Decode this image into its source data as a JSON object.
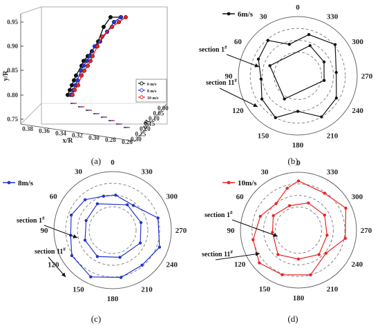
{
  "chart_data": [
    {
      "panel": "(a)",
      "type": "line",
      "projection": "3d",
      "ylabel": "y/R",
      "xlabel": "x/R",
      "zlabel": "z/R",
      "y_ticks": [
        "0.75",
        "0.80",
        "0.85",
        "0.90",
        "0.95"
      ],
      "x_ticks": [
        "0.38",
        "0.36",
        "0.34",
        "0.32",
        "0.30",
        "0.28",
        "0.26"
      ],
      "z_ticks": [
        "0.00",
        "0.05",
        "0.10",
        "0.15",
        "0.20",
        "0.25",
        "0.30"
      ],
      "legend": [
        "6 m/s",
        "8 m/s",
        "10 m/s"
      ],
      "colors": [
        "#111111",
        "#2233dd",
        "#ee2222"
      ],
      "series": [
        {
          "name": "6 m/s",
          "y": [
            0.8,
            0.81,
            0.82,
            0.83,
            0.84,
            0.86,
            0.87,
            0.88,
            0.89,
            0.91,
            0.94,
            0.96,
            0.96
          ]
        },
        {
          "name": "8 m/s",
          "y": [
            0.8,
            0.81,
            0.82,
            0.83,
            0.85,
            0.86,
            0.87,
            0.88,
            0.9,
            0.91,
            0.93,
            0.95,
            0.96
          ]
        },
        {
          "name": "10 m/s",
          "y": [
            0.8,
            0.81,
            0.82,
            0.84,
            0.85,
            0.86,
            0.87,
            0.88,
            0.9,
            0.92,
            0.94,
            0.95,
            0.96
          ]
        }
      ]
    },
    {
      "panel": "(b)",
      "type": "radar",
      "legend": "6m/s",
      "color": "#111111",
      "angle_labels": [
        "0",
        "330",
        "300",
        "270",
        "240",
        "210",
        "180",
        "150",
        "120",
        "90",
        "60",
        "30"
      ],
      "annotations": [
        "section 1#",
        "section 11#"
      ],
      "series": [
        {
          "name": "section 1",
          "angles": [
            22,
            62,
            100,
            210,
            290
          ],
          "r": [
            0.55,
            0.5,
            0.45,
            0.45,
            0.5
          ]
        },
        {
          "name": "section 11",
          "angles": [
            15,
            50,
            85,
            120,
            150,
            180,
            208,
            237,
            265,
            293,
            320,
            345
          ],
          "r": [
            0.72,
            0.82,
            0.65,
            0.75,
            0.8,
            0.6,
            0.8,
            0.72,
            0.62,
            0.72,
            0.78,
            0.55
          ]
        }
      ]
    },
    {
      "panel": "(c)",
      "type": "radar",
      "legend": "8m/s",
      "color": "#2233cc",
      "angle_labels": [
        "0",
        "330",
        "300",
        "270",
        "240",
        "210",
        "180",
        "150",
        "120",
        "90",
        "60",
        "30"
      ],
      "annotations": [
        "section 1#",
        "section 11#"
      ],
      "series": [
        {
          "name": "section 1",
          "angles": [
            330,
            30,
            75,
            115,
            165,
            210,
            250,
            290
          ],
          "r": [
            0.52,
            0.5,
            0.5,
            0.52,
            0.48,
            0.52,
            0.5,
            0.48
          ]
        },
        {
          "name": "section 11",
          "angles": [
            5,
            40,
            75,
            110,
            140,
            170,
            205,
            238,
            263,
            290,
            318,
            345
          ],
          "r": [
            0.6,
            0.55,
            0.8,
            0.85,
            0.78,
            0.82,
            0.88,
            0.82,
            0.72,
            0.75,
            0.7,
            0.6
          ]
        }
      ]
    },
    {
      "panel": "(d)",
      "type": "radar",
      "legend": "10m/s",
      "color": "#ee2222",
      "angle_labels": [
        "0",
        "330",
        "300",
        "270",
        "240",
        "210",
        "180",
        "150",
        "120",
        "90",
        "60",
        "30"
      ],
      "annotations": [
        "section 1#",
        "section 11#"
      ],
      "series": [
        {
          "name": "section 1",
          "angles": [
            340,
            20,
            60,
            100,
            140,
            180,
            220,
            265,
            300
          ],
          "r": [
            0.45,
            0.5,
            0.52,
            0.5,
            0.55,
            0.5,
            0.55,
            0.45,
            0.5
          ]
        },
        {
          "name": "section 11",
          "angles": [
            0,
            35,
            65,
            100,
            130,
            165,
            200,
            230,
            258,
            290,
            320,
            345
          ],
          "r": [
            0.85,
            0.78,
            0.9,
            0.82,
            0.62,
            0.8,
            0.82,
            0.88,
            0.8,
            0.7,
            0.6,
            0.75
          ]
        }
      ]
    }
  ],
  "captions": [
    "(a)",
    "(b)",
    "(c)",
    "(d)"
  ]
}
